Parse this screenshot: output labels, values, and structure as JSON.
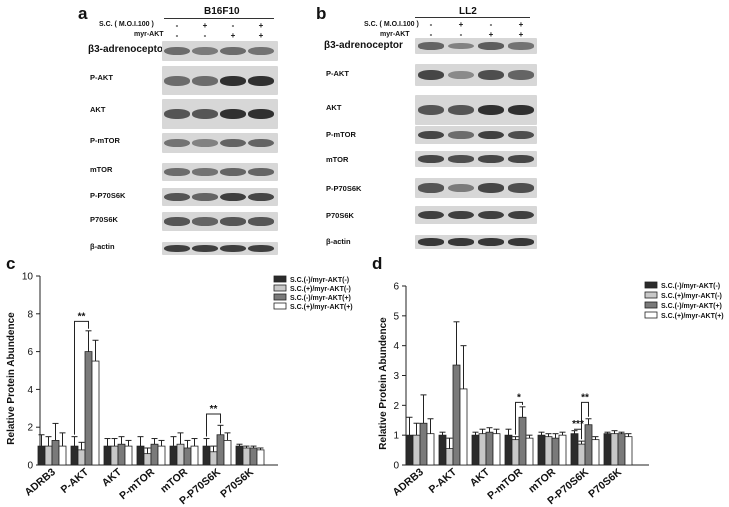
{
  "panels": {
    "a": {
      "letter": "a",
      "cell_line": "B16F10",
      "conditions": [
        {
          "label": "S.C. ( M.O.I.100 )",
          "signs": [
            "-",
            "+",
            "-",
            "+"
          ]
        },
        {
          "label": "myr-AKT",
          "signs": [
            "-",
            "-",
            "+",
            "+"
          ]
        }
      ],
      "blots": [
        {
          "label": "β3-adrenoceptor",
          "big": true,
          "intensity": [
            0.55,
            0.45,
            0.55,
            0.5
          ]
        },
        {
          "label": "P-AKT",
          "big": false,
          "intensity": [
            0.55,
            0.55,
            0.95,
            0.95
          ]
        },
        {
          "label": "AKT",
          "big": false,
          "intensity": [
            0.7,
            0.7,
            0.95,
            0.95
          ]
        },
        {
          "label": "P-mTOR",
          "big": false,
          "intensity": [
            0.5,
            0.4,
            0.6,
            0.6
          ]
        },
        {
          "label": "mTOR",
          "big": false,
          "intensity": [
            0.55,
            0.5,
            0.6,
            0.6
          ]
        },
        {
          "label": "P-P70S6K",
          "big": false,
          "intensity": [
            0.7,
            0.6,
            0.85,
            0.8
          ]
        },
        {
          "label": "P70S6K",
          "big": false,
          "intensity": [
            0.7,
            0.6,
            0.7,
            0.7
          ]
        },
        {
          "label": "β-actin",
          "big": false,
          "intensity": [
            0.85,
            0.85,
            0.85,
            0.85
          ]
        }
      ]
    },
    "b": {
      "letter": "b",
      "cell_line": "LL2",
      "conditions": [
        {
          "label": "S.C. ( M.O.I.100 )",
          "signs": [
            "-",
            "+",
            "-",
            "+"
          ]
        },
        {
          "label": "myr-AKT",
          "signs": [
            "-",
            "-",
            "+",
            "+"
          ]
        }
      ],
      "blots": [
        {
          "label": "β3-adrenoceptor",
          "big": true,
          "intensity": [
            0.6,
            0.4,
            0.65,
            0.5
          ]
        },
        {
          "label": "P-AKT",
          "big": false,
          "intensity": [
            0.8,
            0.35,
            0.75,
            0.6
          ]
        },
        {
          "label": "AKT",
          "big": false,
          "intensity": [
            0.7,
            0.7,
            0.95,
            0.95
          ]
        },
        {
          "label": "P-mTOR",
          "big": false,
          "intensity": [
            0.8,
            0.55,
            0.85,
            0.75
          ]
        },
        {
          "label": "mTOR",
          "big": false,
          "intensity": [
            0.8,
            0.75,
            0.8,
            0.8
          ]
        },
        {
          "label": "P-P70S6K",
          "big": false,
          "intensity": [
            0.7,
            0.45,
            0.8,
            0.75
          ]
        },
        {
          "label": "P70S6K",
          "big": false,
          "intensity": [
            0.85,
            0.85,
            0.85,
            0.85
          ]
        },
        {
          "label": "β-actin",
          "big": false,
          "intensity": [
            0.9,
            0.9,
            0.9,
            0.9
          ]
        }
      ]
    },
    "c": {
      "letter": "c"
    },
    "d": {
      "letter": "d"
    }
  },
  "colors": {
    "bar_fills": [
      "#2b2b2b",
      "#c8c8c8",
      "#7a7a7a",
      "#ffffff"
    ],
    "blot_bg": "#d7d7d7",
    "band": "#1a1a1a"
  },
  "chart_data": [
    {
      "type": "bar",
      "panel": "c",
      "ylabel": "Relative Protein Abundence",
      "xlabel": "",
      "ylim": [
        0,
        10
      ],
      "yticks": [
        "0",
        "2",
        "4",
        "6",
        "8",
        "10"
      ],
      "categories": [
        "ADRB3",
        "P-AKT",
        "AKT",
        "P-mTOR",
        "mTOR",
        "P-P70S6K",
        "P70S6K"
      ],
      "series": [
        {
          "name": "S.C.(-)/myr-AKT(-)",
          "values": [
            1.0,
            1.0,
            1.0,
            1.0,
            1.0,
            1.0,
            1.0
          ],
          "errors": [
            0.6,
            0.5,
            0.4,
            0.5,
            0.5,
            0.4,
            0.1
          ]
        },
        {
          "name": "S.C.(+)/myr-AKT(-)",
          "values": [
            1.0,
            0.8,
            1.0,
            0.6,
            1.1,
            0.7,
            0.9
          ],
          "errors": [
            0.5,
            0.4,
            0.4,
            0.3,
            0.6,
            0.3,
            0.1
          ]
        },
        {
          "name": "S.C.(-)/myr-AKT(+)",
          "values": [
            1.3,
            6.0,
            1.1,
            1.1,
            0.9,
            1.6,
            0.9
          ],
          "errors": [
            0.9,
            1.1,
            0.4,
            0.3,
            0.4,
            0.5,
            0.1
          ]
        },
        {
          "name": "S.C.(+)/myr-AKT(+)",
          "values": [
            1.0,
            5.5,
            1.0,
            1.0,
            1.0,
            1.3,
            0.8
          ],
          "errors": [
            0.7,
            1.1,
            0.3,
            0.3,
            0.4,
            0.4,
            0.1
          ]
        }
      ],
      "significance": [
        {
          "category": "P-AKT",
          "text": "**"
        },
        {
          "category": "P-P70S6K",
          "text": "**"
        }
      ],
      "legend": "top-right"
    },
    {
      "type": "bar",
      "panel": "d",
      "ylabel": "Relative Protein Abundence",
      "xlabel": "",
      "ylim": [
        0,
        6
      ],
      "yticks": [
        "0",
        "1",
        "2",
        "3",
        "4",
        "5",
        "6"
      ],
      "categories": [
        "ADRB3",
        "P-AKT",
        "AKT",
        "P-mTOR",
        "mTOR",
        "P-P70S6K",
        "P70S6K"
      ],
      "series": [
        {
          "name": "S.C.(-)/myr-AKT(-)",
          "values": [
            1.0,
            1.0,
            1.0,
            1.0,
            1.0,
            1.05,
            1.05
          ],
          "errors": [
            0.6,
            0.1,
            0.1,
            0.2,
            0.1,
            0.1,
            0.05
          ]
        },
        {
          "name": "S.C.(+)/myr-AKT(-)",
          "values": [
            1.0,
            0.55,
            1.05,
            0.85,
            0.95,
            0.7,
            1.05
          ],
          "errors": [
            0.4,
            0.35,
            0.15,
            0.1,
            0.1,
            0.1,
            0.1
          ]
        },
        {
          "name": "S.C.(-)/myr-AKT(+)",
          "values": [
            1.4,
            3.35,
            1.1,
            1.6,
            0.9,
            1.35,
            1.05
          ],
          "errors": [
            0.95,
            1.45,
            0.15,
            0.35,
            0.15,
            0.2,
            0.05
          ]
        },
        {
          "name": "S.C.(+)/myr-AKT(+)",
          "values": [
            1.05,
            2.55,
            1.05,
            0.9,
            1.0,
            0.85,
            0.95
          ],
          "errors": [
            0.5,
            1.45,
            0.15,
            0.1,
            0.1,
            0.1,
            0.1
          ]
        }
      ],
      "significance": [
        {
          "category": "P-mTOR",
          "text": "*"
        },
        {
          "category": "P-P70S6K",
          "text": "**"
        },
        {
          "category": "P-P70S6K",
          "text": "***"
        }
      ],
      "legend": "top-right"
    }
  ]
}
